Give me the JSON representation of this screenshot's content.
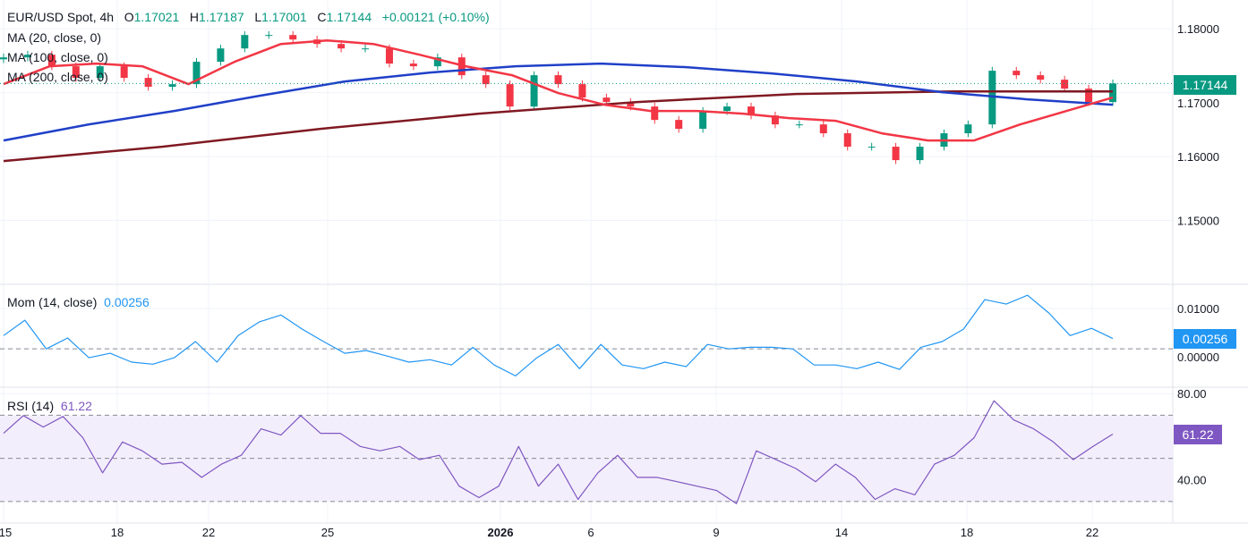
{
  "header": {
    "symbol": "EUR/USD Spot, 4h",
    "o_label": "O",
    "o": "1.17021",
    "h_label": "H",
    "h": "1.17187",
    "l_label": "L",
    "l": "1.17001",
    "c_label": "C",
    "c": "1.17144",
    "change": "+0.00121 (+0.10%)"
  },
  "legend": {
    "ma20": "MA (20, close, 0)",
    "ma100": "MA (100, close, 0)",
    "ma200": "MA (200, close, 0)",
    "mom": "Mom (14, close)",
    "mom_value": "0.00256",
    "rsi": "RSI (14)",
    "rsi_value": "61.22"
  },
  "tags": {
    "price": "1.17144",
    "mom": "0.00256",
    "rsi": "61.22"
  },
  "colors": {
    "up": "#089981",
    "down": "#f23645",
    "ma20": "#f23645",
    "ma100": "#2040c8",
    "ma200": "#801922",
    "mom": "#2196f3",
    "rsi": "#7e57c2",
    "rsi_band": "#f3eefb"
  },
  "chart_data": [
    {
      "type": "candlestick",
      "title": "EUR/USD Spot, 4h",
      "ylim": [
        1.14,
        1.1845
      ],
      "y_ticks": [
        "1.18000",
        "1.17000",
        "1.16000",
        "1.15000"
      ],
      "y_tick_values": [
        1.18,
        1.17,
        1.16,
        1.15
      ],
      "x_ticks": [
        "15",
        "18",
        "22",
        "25",
        "2026",
        "6",
        "9",
        "14",
        "18",
        "22"
      ],
      "close": [
        1.17552,
        1.17594,
        1.17413,
        1.17231,
        1.17413,
        1.17231,
        1.17091,
        1.17133,
        1.17483,
        1.17692,
        1.17902,
        1.17902,
        1.17832,
        1.17762,
        1.17692,
        1.17692,
        1.17455,
        1.17413,
        1.17552,
        1.17273,
        1.17133,
        1.16783,
        1.17273,
        1.17133,
        1.16923,
        1.16853,
        1.16783,
        1.16573,
        1.16434,
        1.16713,
        1.16783,
        1.16643,
        1.16503,
        1.16503,
        1.16364,
        1.16154,
        1.16154,
        1.15944,
        1.16154,
        1.16364,
        1.16503,
        1.17343,
        1.17273,
        1.17203,
        1.17063,
        1.16853,
        1.17144
      ],
      "series": [
        {
          "name": "MA (20, close, 0)",
          "values": [
            1.17133,
            1.17413,
            1.17455,
            1.17413,
            1.17133,
            1.17483,
            1.17762,
            1.17818,
            1.17762,
            1.17594,
            1.17413,
            1.17273,
            1.16993,
            1.16811,
            1.16713,
            1.16713,
            1.16671,
            1.16601,
            1.16559,
            1.16364,
            1.16252,
            1.16252,
            1.16503,
            1.16713,
            1.16923
          ]
        },
        {
          "name": "MA (100, close, 0)",
          "values": [
            1.16252,
            1.16503,
            1.16713,
            1.16951,
            1.17175,
            1.17315,
            1.17413,
            1.17455,
            1.17399,
            1.17301,
            1.17175,
            1.17007,
            1.16895,
            1.16811
          ]
        },
        {
          "name": "MA (200, close, 0)",
          "values": [
            1.1593,
            1.16154,
            1.16434,
            1.16671,
            1.16853,
            1.16979,
            1.1702,
            1.1702
          ]
        }
      ]
    },
    {
      "type": "line",
      "title": "Mom (14, close)",
      "ylim": [
        -0.0095,
        0.016
      ],
      "y_ticks": [
        "0.01000",
        "0.00000"
      ],
      "y_tick_values": [
        0.01,
        0
      ],
      "values": [
        0.0033,
        0.0071,
        0,
        0.0027,
        -0.0022,
        -0.0011,
        -0.0033,
        -0.0038,
        -0.0022,
        0.0018,
        -0.0033,
        0.0033,
        0.0067,
        0.0084,
        0.0049,
        0.0018,
        -0.0011,
        -0.0004,
        -0.0018,
        -0.0033,
        -0.0027,
        -0.004,
        0.0004,
        -0.004,
        -0.0067,
        -0.0022,
        0.0011,
        -0.0049,
        0.0011,
        -0.004,
        -0.0049,
        -0.0033,
        -0.0044,
        0.0011,
        0,
        0.0004,
        0.0004,
        0,
        -0.004,
        -0.004,
        -0.0049,
        -0.0033,
        -0.0051,
        0.0004,
        0.0018,
        0.0049,
        0.0122,
        0.0111,
        0.0133,
        0.0089,
        0.0033,
        0.0051,
        0.00256
      ]
    },
    {
      "type": "line",
      "title": "RSI (14)",
      "ylim": [
        20,
        83
      ],
      "y_ticks": [
        "80.00",
        "40.00"
      ],
      "y_tick_values": [
        80,
        40
      ],
      "bands": [
        30,
        50,
        70
      ],
      "values": [
        61.6,
        69.8,
        64.5,
        69.4,
        59.6,
        43.3,
        57.6,
        53.5,
        47.3,
        48.2,
        41.2,
        47.3,
        51.4,
        63.7,
        60.8,
        69.8,
        61.6,
        61.6,
        55.5,
        53.5,
        55.5,
        49.4,
        51.4,
        37.1,
        31.8,
        37.1,
        55.5,
        37.1,
        47.3,
        31.0,
        43.3,
        51.4,
        41.2,
        41.2,
        39.2,
        37.1,
        35.1,
        29.0,
        53.5,
        49.4,
        45.3,
        39.2,
        47.3,
        41.2,
        31.0,
        35.9,
        33.1,
        47.3,
        51.4,
        59.6,
        76.7,
        67.8,
        63.7,
        57.6,
        49.4,
        55.5,
        61.22
      ]
    }
  ]
}
